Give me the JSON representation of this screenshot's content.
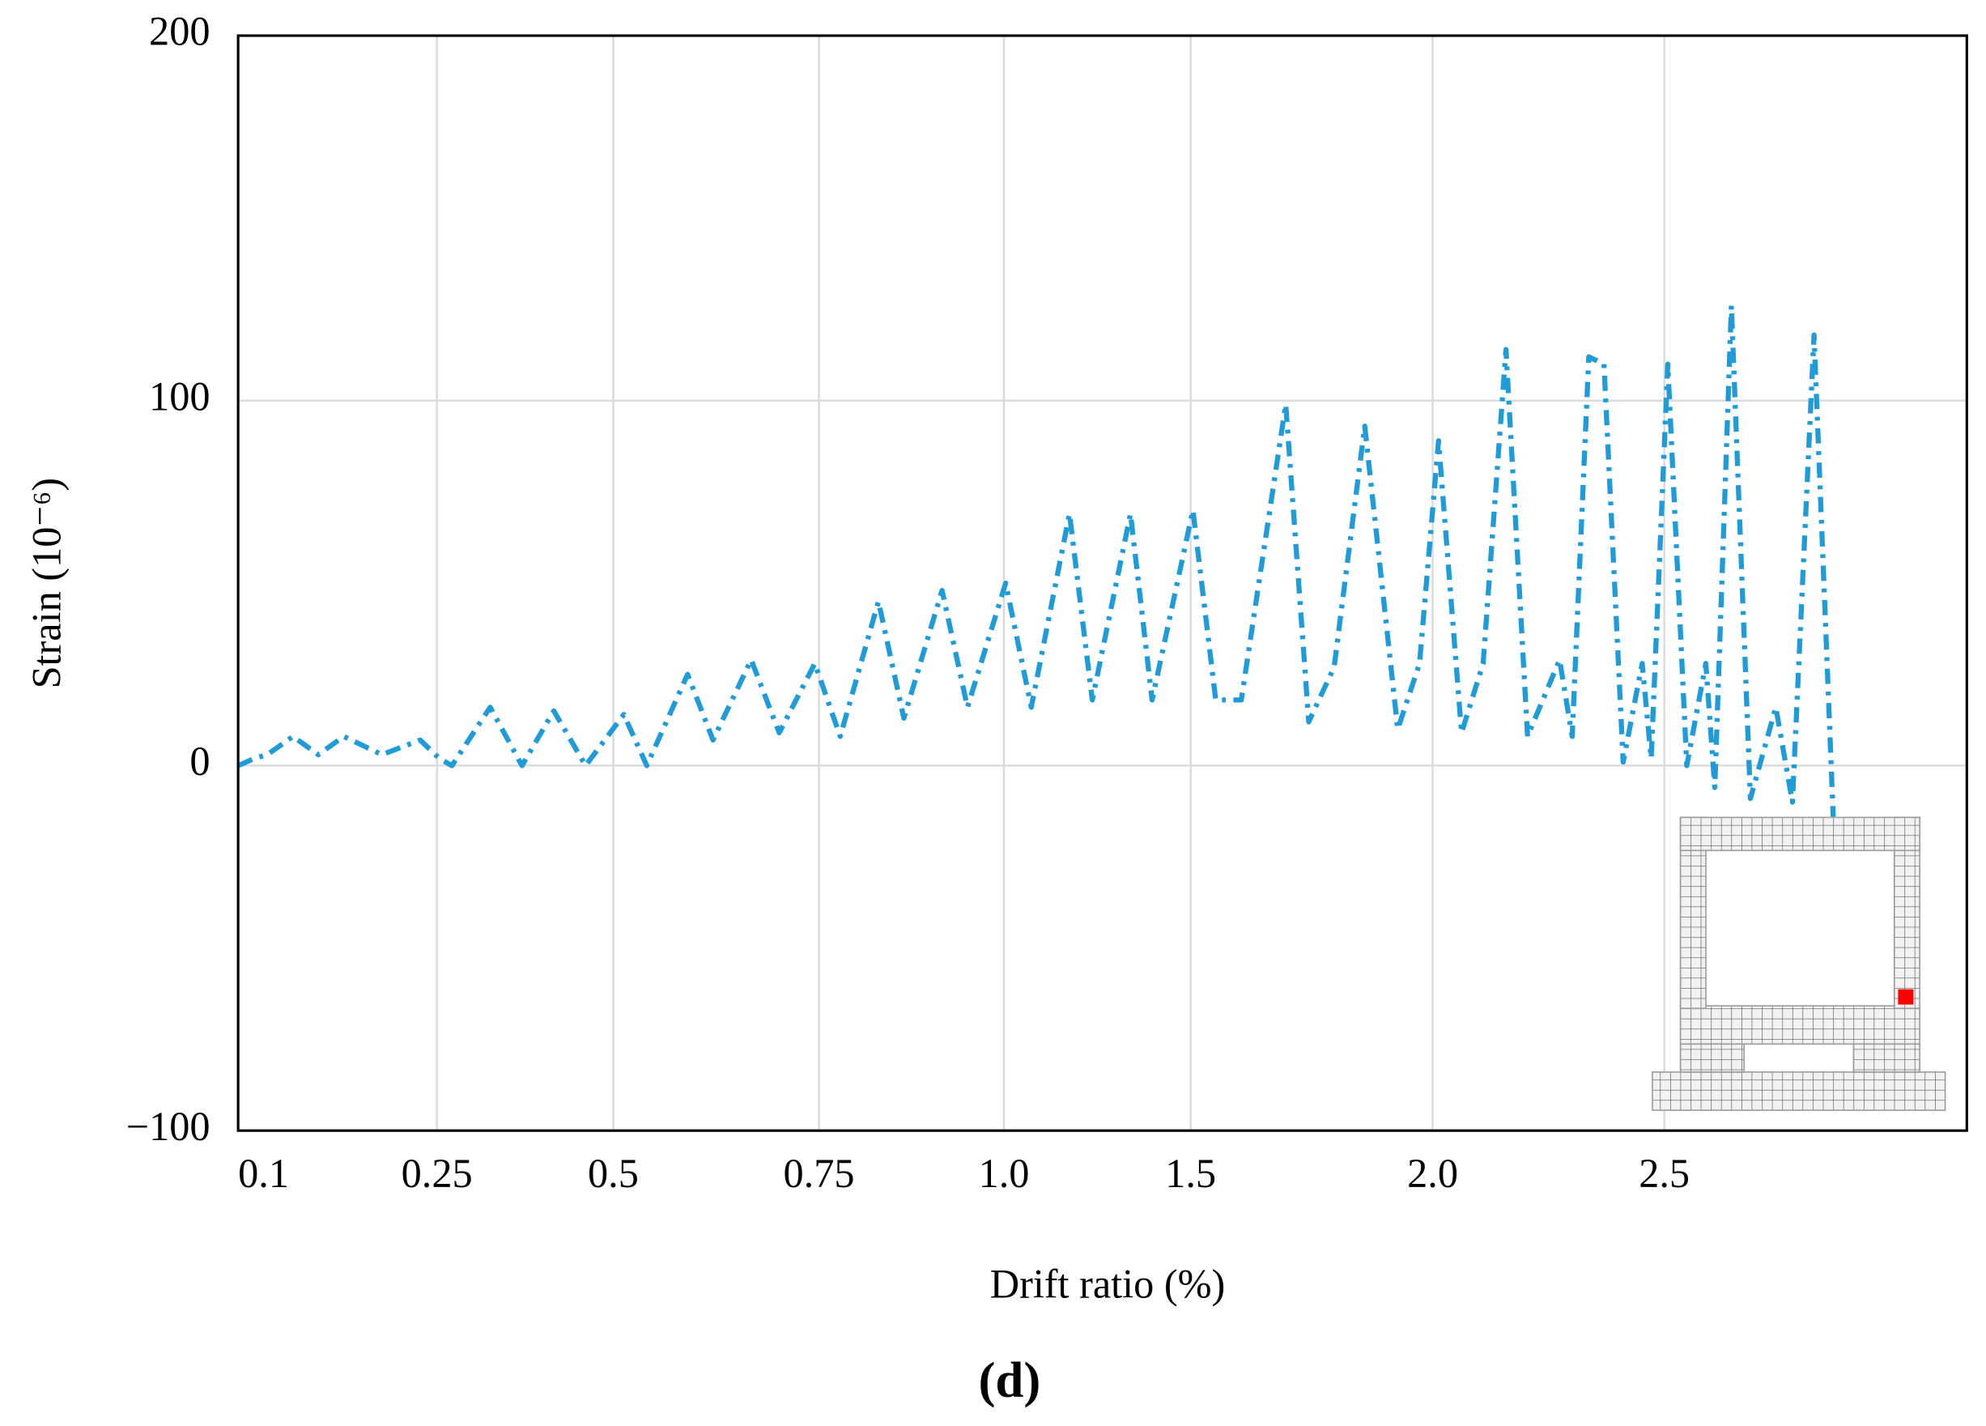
{
  "chart_data": {
    "type": "line",
    "y_label": "Strain (10⁻⁶)",
    "x_label": "Drift ratio (%)",
    "caption": "(d)",
    "xlim": [
      0,
      100
    ],
    "ylim": [
      -100,
      200
    ],
    "xticks": [
      {
        "value": 0,
        "label": "0.1"
      },
      {
        "value": 11.5,
        "label": "0.25"
      },
      {
        "value": 21.7,
        "label": "0.5"
      },
      {
        "value": 33.6,
        "label": "0.75"
      },
      {
        "value": 44.3,
        "label": "1.0"
      },
      {
        "value": 55.1,
        "label": "1.5"
      },
      {
        "value": 69.1,
        "label": "2.0"
      },
      {
        "value": 82.5,
        "label": "2.5"
      }
    ],
    "yticks": [
      {
        "value": -100,
        "label": "−100"
      },
      0,
      100,
      200
    ],
    "grid": true,
    "series": [
      {
        "color": "#1f9bd7",
        "x": [
          0,
          0.96,
          1.69,
          3.17,
          4.64,
          6.11,
          8.32,
          10.53,
          11.63,
          12.37,
          14.58,
          16.42,
          18.26,
          20.1,
          22.31,
          23.64,
          26.0,
          27.47,
          29.68,
          31.3,
          33.36,
          34.83,
          37.04,
          38.51,
          40.72,
          42.19,
          44.4,
          45.88,
          48.09,
          49.41,
          51.62,
          52.87,
          55.23,
          56.55,
          58.03,
          60.6,
          61.93,
          63.4,
          65.17,
          67.08,
          68.34,
          69.44,
          70.77,
          72.02,
          73.34,
          74.59,
          76.44,
          77.17,
          78.13,
          79.01,
          80.12,
          81.22,
          81.74,
          82.7,
          83.8,
          84.9,
          85.42,
          86.38,
          87.48,
          88.95,
          89.91,
          91.16,
          92.27
        ],
        "values": [
          0,
          2,
          3,
          8,
          3,
          8,
          3,
          7,
          2,
          0,
          16,
          0,
          15,
          0,
          14,
          0,
          25,
          7,
          29,
          9,
          28,
          8,
          45,
          13,
          48,
          16,
          50,
          16,
          69,
          18,
          69,
          18,
          70,
          18,
          18,
          99,
          12,
          27,
          93,
          10,
          28,
          89,
          9,
          28,
          114,
          8,
          29,
          8,
          112,
          110,
          1,
          28,
          2,
          110,
          0,
          28,
          -6,
          126,
          -9,
          16,
          -10,
          118,
          -14
        ]
      }
    ]
  }
}
